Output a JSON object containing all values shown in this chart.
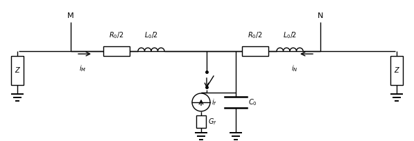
{
  "fig_width": 5.97,
  "fig_height": 2.04,
  "dpi": 100,
  "line_color": "black",
  "lw": 1.0,
  "M_label": "M",
  "N_label": "N",
  "R0_label": "$R_0/2$",
  "L0_label": "$L_0/2$",
  "C0_label": "$C_0$",
  "Gf_label": "$G_f$",
  "iM_label": "$i_M$",
  "iN_label": "$i_N$",
  "if_label": "$i_f$",
  "Z_label": "Z"
}
